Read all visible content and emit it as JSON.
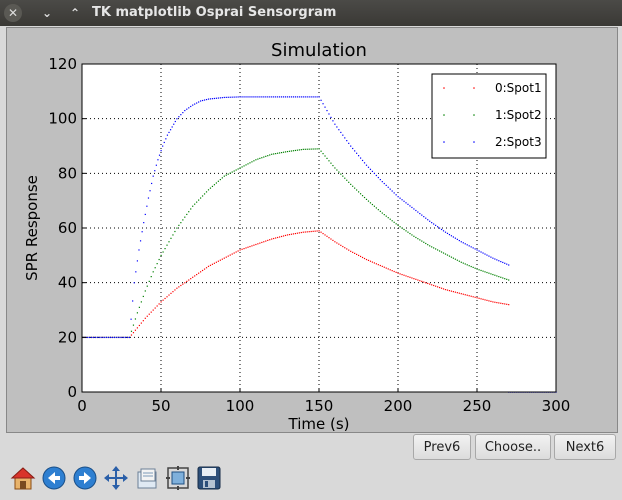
{
  "window": {
    "title": "TK matplotlib Osprai Sensorgram",
    "close_glyph": "✕",
    "minimize_glyph": "⌄",
    "maximize_glyph": "⌃"
  },
  "buttons": {
    "prev": "Prev6",
    "choose": "Choose..",
    "next": "Next6"
  },
  "toolbar": {
    "icons": [
      "home-icon",
      "back-icon",
      "forward-icon",
      "pan-icon",
      "subplots-icon",
      "zoom-icon",
      "save-icon"
    ]
  },
  "colors": {
    "spot1": "#ff0000",
    "spot2": "#008000",
    "spot3": "#0000ff"
  },
  "chart_data": {
    "type": "scatter",
    "title": "Simulation",
    "xlabel": "Time (s)",
    "ylabel": "SPR Response",
    "xlim": [
      0,
      300
    ],
    "ylim": [
      0,
      120
    ],
    "xticks": [
      0,
      50,
      100,
      150,
      200,
      250,
      300
    ],
    "yticks": [
      0,
      20,
      40,
      60,
      80,
      100,
      120
    ],
    "grid": true,
    "legend_position": "top-right",
    "series": [
      {
        "name": "0:Spot1",
        "color": "#ff0000",
        "x": [
          0,
          30,
          40,
          50,
          60,
          70,
          80,
          90,
          100,
          110,
          120,
          130,
          140,
          150,
          160,
          170,
          180,
          190,
          200,
          210,
          220,
          230,
          240,
          250,
          260,
          270
        ],
        "y": [
          20,
          20,
          27,
          33,
          38,
          42,
          46,
          49,
          52,
          54,
          56,
          57.5,
          58.5,
          59,
          55,
          51.5,
          48.5,
          46,
          43.5,
          41.5,
          39.5,
          37.5,
          36,
          34.5,
          33,
          32
        ]
      },
      {
        "name": "1:Spot2",
        "color": "#008000",
        "x": [
          0,
          30,
          35,
          40,
          45,
          50,
          55,
          60,
          70,
          80,
          90,
          100,
          110,
          120,
          130,
          140,
          150,
          160,
          170,
          180,
          190,
          200,
          210,
          220,
          230,
          240,
          250,
          260,
          270
        ],
        "y": [
          20,
          20,
          29,
          37,
          44,
          50,
          55,
          60,
          68,
          74,
          79,
          82,
          85,
          87,
          88,
          88.8,
          89,
          82,
          76,
          70.5,
          65.5,
          61,
          57,
          53.5,
          50.5,
          47.5,
          45,
          43,
          41
        ]
      },
      {
        "name": "2:Spot3",
        "color": "#0000ff",
        "x": [
          0,
          30,
          33,
          36,
          39,
          42,
          45,
          48,
          51,
          54,
          57,
          60,
          65,
          70,
          75,
          80,
          90,
          100,
          110,
          120,
          130,
          140,
          150,
          160,
          170,
          180,
          190,
          200,
          210,
          220,
          230,
          240,
          250,
          260,
          270
        ],
        "y": [
          20,
          20,
          40,
          52,
          62,
          71,
          79,
          85,
          90,
          94,
          97,
          100,
          103,
          105,
          106.5,
          107.2,
          107.8,
          108,
          108,
          108,
          108,
          108,
          108,
          98,
          90,
          83,
          77,
          71.5,
          67,
          62.5,
          58.5,
          55,
          52,
          49,
          46.5
        ]
      }
    ],
    "tail": {
      "x": [
        270,
        300
      ],
      "y": [
        0,
        0
      ],
      "color": "#0000ff"
    }
  }
}
